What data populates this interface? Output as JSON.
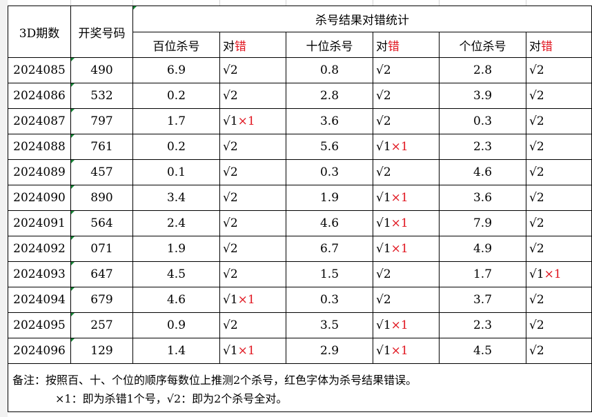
{
  "table": {
    "col_period": "3D期数",
    "col_number": "开奖号码",
    "group_title": "杀号结果对错统计",
    "sub_headers": [
      {
        "kill": "百位杀号",
        "right": "对",
        "wrong": "错"
      },
      {
        "kill": "十位杀号",
        "right": "对",
        "wrong": "错"
      },
      {
        "kill": "个位杀号",
        "right": "对",
        "wrong": "错"
      }
    ],
    "rows": [
      {
        "period": "2024085",
        "number": "490",
        "h_kill": "6.9",
        "h_res": "√2",
        "h_err": "",
        "t_kill": "0.8",
        "t_res": "√2",
        "t_err": "",
        "u_kill": "2.8",
        "u_res": "√2",
        "u_err": ""
      },
      {
        "period": "2024086",
        "number": "532",
        "h_kill": "0.2",
        "h_res": "√2",
        "h_err": "",
        "t_kill": "2.8",
        "t_res": "√2",
        "t_err": "",
        "u_kill": "3.9",
        "u_res": "√2",
        "u_err": ""
      },
      {
        "period": "2024087",
        "number": "797",
        "h_kill": "1.7",
        "h_res": "√1",
        "h_err": "×1",
        "t_kill": "3.6",
        "t_res": "√2",
        "t_err": "",
        "u_kill": "0.3",
        "u_res": "√2",
        "u_err": ""
      },
      {
        "period": "2024088",
        "number": "761",
        "h_kill": "0.2",
        "h_res": "√2",
        "h_err": "",
        "t_kill": "5.6",
        "t_res": "√1",
        "t_err": "×1",
        "u_kill": "2.3",
        "u_res": "√2",
        "u_err": ""
      },
      {
        "period": "2024089",
        "number": "457",
        "h_kill": "0.1",
        "h_res": "√2",
        "h_err": "",
        "t_kill": "0.3",
        "t_res": "√2",
        "t_err": "",
        "u_kill": "4.6",
        "u_res": "√2",
        "u_err": ""
      },
      {
        "period": "2024090",
        "number": "890",
        "h_kill": "3.4",
        "h_res": "√2",
        "h_err": "",
        "t_kill": "1.9",
        "t_res": "√1",
        "t_err": "×1",
        "u_kill": "3.6",
        "u_res": "√2",
        "u_err": ""
      },
      {
        "period": "2024091",
        "number": "564",
        "h_kill": "2.4",
        "h_res": "√2",
        "h_err": "",
        "t_kill": "4.6",
        "t_res": "√1",
        "t_err": "×1",
        "u_kill": "7.9",
        "u_res": "√2",
        "u_err": ""
      },
      {
        "period": "2024092",
        "number": "071",
        "h_kill": "1.9",
        "h_res": "√2",
        "h_err": "",
        "t_kill": "6.7",
        "t_res": "√1",
        "t_err": "×1",
        "u_kill": "4.9",
        "u_res": "√2",
        "u_err": ""
      },
      {
        "period": "2024093",
        "number": "647",
        "h_kill": "4.5",
        "h_res": "√2",
        "h_err": "",
        "t_kill": "1.5",
        "t_res": "√2",
        "t_err": "",
        "u_kill": "1.7",
        "u_res": "√1",
        "u_err": "×1"
      },
      {
        "period": "2024094",
        "number": "679",
        "h_kill": "4.6",
        "h_res": "√1",
        "h_err": "×1",
        "t_kill": "0.3",
        "t_res": "√2",
        "t_err": "",
        "u_kill": "3.7",
        "u_res": "√2",
        "u_err": ""
      },
      {
        "period": "2024095",
        "number": "257",
        "h_kill": "0.9",
        "h_res": "√2",
        "h_err": "",
        "t_kill": "3.5",
        "t_res": "√1",
        "t_err": "×1",
        "u_kill": "2.3",
        "u_res": "√2",
        "u_err": ""
      },
      {
        "period": "2024096",
        "number": "129",
        "h_kill": "1.4",
        "h_res": "√1",
        "h_err": "×1",
        "t_kill": "2.9",
        "t_res": "√1",
        "t_err": "×1",
        "u_kill": "4.5",
        "u_res": "√2",
        "u_err": ""
      }
    ]
  },
  "note": {
    "line1": "备注：按照百、十、个位的顺序每数位上推测2个杀号，红色字体为杀号结果错误。",
    "line2": "×1：即为杀错1个号，√2：即为2个杀号全对。"
  },
  "colors": {
    "error_red": "#e0141e",
    "grid": "#000000",
    "marker_green": "#1a8a3a"
  }
}
